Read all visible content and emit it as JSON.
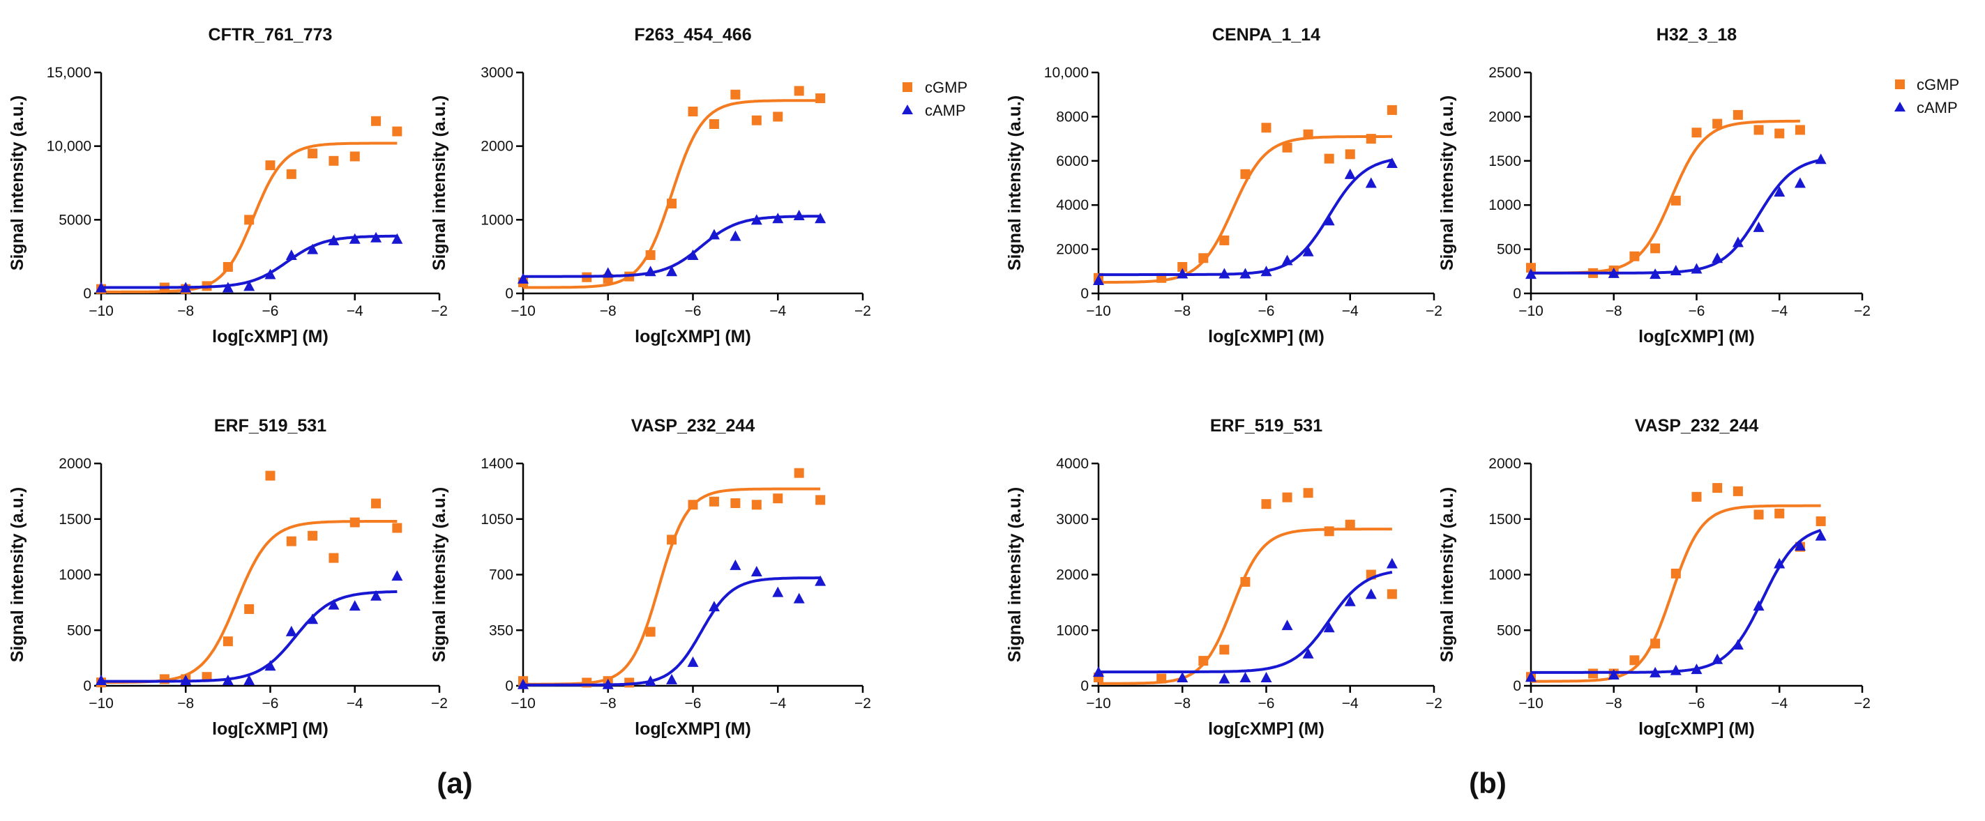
{
  "figure": {
    "panel_labels": [
      "(a)",
      "(b)"
    ],
    "legend": [
      {
        "series": "cGMP",
        "marker": "square",
        "color": "#F47B20"
      },
      {
        "series": "cAMP",
        "marker": "triangle",
        "color": "#1818D2"
      }
    ]
  },
  "chart_data": [
    {
      "type": "scatter",
      "title": "CFTR_761_773",
      "xlabel": "log[cXMP] (M)",
      "ylabel": "Signal intensity (a.u.)",
      "xlim": [
        -10,
        -2
      ],
      "xticks": [
        -10,
        -8,
        -6,
        -4,
        -2
      ],
      "ylim": [
        0,
        15000
      ],
      "yticks": [
        0,
        5000,
        10000,
        15000
      ],
      "ytick_labels": [
        "0",
        "5000",
        "10,000",
        "15,000"
      ],
      "series": [
        {
          "name": "cGMP",
          "x": [
            -10,
            -8.5,
            -8,
            -7.5,
            -7,
            -6.5,
            -6,
            -5.5,
            -5,
            -4.5,
            -4,
            -3.5,
            -3
          ],
          "y": [
            300,
            400,
            300,
            500,
            1800,
            5000,
            8700,
            8100,
            9500,
            9000,
            9300,
            11700,
            11000
          ],
          "fit": {
            "bottom": 100,
            "top": 10200,
            "logec50": -6.4,
            "hill": 1.2
          }
        },
        {
          "name": "cAMP",
          "x": [
            -10,
            -8,
            -7,
            -6.5,
            -6,
            -5.5,
            -5,
            -4.5,
            -4,
            -3.5,
            -3
          ],
          "y": [
            400,
            400,
            400,
            500,
            1300,
            2600,
            3000,
            3600,
            3700,
            3800,
            3700
          ],
          "fit": {
            "bottom": 400,
            "top": 3900,
            "logec50": -5.6,
            "hill": 1.0
          }
        }
      ]
    },
    {
      "type": "scatter",
      "title": "F263_454_466",
      "xlabel": "log[cXMP] (M)",
      "ylabel": "Signal intensity (a.u.)",
      "xlim": [
        -10,
        -2
      ],
      "xticks": [
        -10,
        -8,
        -6,
        -4,
        -2
      ],
      "ylim": [
        0,
        3000
      ],
      "yticks": [
        0,
        1000,
        2000,
        3000
      ],
      "ytick_labels": [
        "0",
        "1000",
        "2000",
        "3000"
      ],
      "series": [
        {
          "name": "cGMP",
          "x": [
            -10,
            -8.5,
            -8,
            -7.5,
            -7,
            -6.5,
            -6,
            -5.5,
            -5,
            -4.5,
            -4,
            -3.5,
            -3
          ],
          "y": [
            150,
            220,
            200,
            230,
            520,
            1220,
            2470,
            2300,
            2700,
            2350,
            2400,
            2750,
            2650
          ],
          "fit": {
            "bottom": 80,
            "top": 2620,
            "logec50": -6.5,
            "hill": 1.2
          }
        },
        {
          "name": "cAMP",
          "x": [
            -10,
            -8,
            -7,
            -6.5,
            -6,
            -5.5,
            -5,
            -4.5,
            -4,
            -3.5,
            -3
          ],
          "y": [
            200,
            280,
            300,
            300,
            520,
            800,
            780,
            1000,
            1020,
            1060,
            1020
          ],
          "fit": {
            "bottom": 230,
            "top": 1050,
            "logec50": -5.8,
            "hill": 1.0
          }
        }
      ]
    },
    {
      "type": "scatter",
      "title": "CENPA_1_14",
      "xlabel": "log[cXMP] (M)",
      "ylabel": "Signal intensity (a.u.)",
      "xlim": [
        -10,
        -2
      ],
      "xticks": [
        -10,
        -8,
        -6,
        -4,
        -2
      ],
      "ylim": [
        0,
        10000
      ],
      "yticks": [
        0,
        2000,
        4000,
        6000,
        8000,
        10000
      ],
      "ytick_labels": [
        "0",
        "2000",
        "4000",
        "6000",
        "8000",
        "10,000"
      ],
      "series": [
        {
          "name": "cGMP",
          "x": [
            -10,
            -8.5,
            -8,
            -7.5,
            -7,
            -6.5,
            -6,
            -5.5,
            -5,
            -4.5,
            -4,
            -3.5,
            -3
          ],
          "y": [
            700,
            700,
            1200,
            1600,
            2400,
            5400,
            7500,
            6600,
            7200,
            6100,
            6300,
            7000,
            8300
          ],
          "fit": {
            "bottom": 500,
            "top": 7100,
            "logec50": -6.8,
            "hill": 1.1
          }
        },
        {
          "name": "cAMP",
          "x": [
            -10,
            -8,
            -7,
            -6.5,
            -6,
            -5.5,
            -5,
            -4.5,
            -4,
            -3.5,
            -3
          ],
          "y": [
            600,
            900,
            900,
            900,
            1000,
            1500,
            1900,
            3300,
            5400,
            5000,
            5900
          ],
          "fit": {
            "bottom": 850,
            "top": 6200,
            "logec50": -4.5,
            "hill": 1.0
          }
        }
      ]
    },
    {
      "type": "scatter",
      "title": "H32_3_18",
      "xlabel": "log[cXMP] (M)",
      "ylabel": "Signal intensity (a.u.)",
      "xlim": [
        -10,
        -2
      ],
      "xticks": [
        -10,
        -8,
        -6,
        -4,
        -2
      ],
      "ylim": [
        0,
        2500
      ],
      "yticks": [
        0,
        500,
        1000,
        1500,
        2000,
        2500
      ],
      "ytick_labels": [
        "0",
        "500",
        "1000",
        "1500",
        "2000",
        "2500"
      ],
      "series": [
        {
          "name": "cGMP",
          "x": [
            -10,
            -8.5,
            -8,
            -7.5,
            -7,
            -6.5,
            -6,
            -5.5,
            -5,
            -4.5,
            -4,
            -3.5
          ],
          "y": [
            290,
            230,
            260,
            420,
            510,
            1050,
            1820,
            1920,
            2020,
            1850,
            1810,
            1850
          ],
          "fit": {
            "bottom": 230,
            "top": 1950,
            "logec50": -6.6,
            "hill": 1.1
          }
        },
        {
          "name": "cAMP",
          "x": [
            -10,
            -8,
            -7,
            -6.5,
            -6,
            -5.5,
            -5,
            -4.5,
            -4,
            -3.5,
            -3
          ],
          "y": [
            220,
            230,
            220,
            260,
            280,
            400,
            580,
            750,
            1150,
            1250,
            1520
          ],
          "fit": {
            "bottom": 230,
            "top": 1550,
            "logec50": -4.5,
            "hill": 1.0
          }
        }
      ]
    },
    {
      "type": "scatter",
      "title": "ERF_519_531",
      "xlabel": "log[cXMP] (M)",
      "ylabel": "Signal intensity (a.u.)",
      "xlim": [
        -10,
        -2
      ],
      "xticks": [
        -10,
        -8,
        -6,
        -4,
        -2
      ],
      "ylim": [
        0,
        2000
      ],
      "yticks": [
        0,
        500,
        1000,
        1500,
        2000
      ],
      "ytick_labels": [
        "0",
        "500",
        "1000",
        "1500",
        "2000"
      ],
      "series": [
        {
          "name": "cGMP",
          "x": [
            -10,
            -8.5,
            -8,
            -7.5,
            -7,
            -6.5,
            -6,
            -5.5,
            -5,
            -4.5,
            -4,
            -3.5,
            -3
          ],
          "y": [
            30,
            60,
            60,
            80,
            400,
            690,
            1890,
            1300,
            1350,
            1150,
            1470,
            1640,
            1420
          ],
          "fit": {
            "bottom": 30,
            "top": 1480,
            "logec50": -6.8,
            "hill": 1.1
          }
        },
        {
          "name": "cAMP",
          "x": [
            -10,
            -8,
            -7,
            -6.5,
            -6,
            -5.5,
            -5,
            -4.5,
            -4,
            -3.5,
            -3
          ],
          "y": [
            50,
            50,
            50,
            50,
            180,
            490,
            600,
            730,
            720,
            810,
            990
          ],
          "fit": {
            "bottom": 40,
            "top": 850,
            "logec50": -5.4,
            "hill": 1.0
          }
        }
      ]
    },
    {
      "type": "scatter",
      "title": "VASP_232_244",
      "xlabel": "log[cXMP] (M)",
      "ylabel": "Signal intensity (a.u.)",
      "xlim": [
        -10,
        -2
      ],
      "xticks": [
        -10,
        -8,
        -6,
        -4,
        -2
      ],
      "ylim": [
        0,
        1400
      ],
      "yticks": [
        0,
        350,
        700,
        1050,
        1400
      ],
      "ytick_labels": [
        "0",
        "350",
        "700",
        "1050",
        "1400"
      ],
      "series": [
        {
          "name": "cGMP",
          "x": [
            -10,
            -8.5,
            -8,
            -7.5,
            -7,
            -6.5,
            -6,
            -5.5,
            -5,
            -4.5,
            -4,
            -3.5,
            -3
          ],
          "y": [
            30,
            20,
            30,
            20,
            340,
            920,
            1140,
            1160,
            1150,
            1140,
            1180,
            1340,
            1170
          ],
          "fit": {
            "bottom": 10,
            "top": 1240,
            "logec50": -6.8,
            "hill": 1.3
          }
        },
        {
          "name": "cAMP",
          "x": [
            -10,
            -8,
            -7,
            -6.5,
            -6,
            -5.5,
            -5,
            -4.5,
            -4,
            -3.5,
            -3
          ],
          "y": [
            10,
            10,
            30,
            40,
            150,
            500,
            760,
            720,
            590,
            550,
            660
          ],
          "fit": {
            "bottom": 5,
            "top": 680,
            "logec50": -5.8,
            "hill": 1.2
          }
        }
      ]
    },
    {
      "type": "scatter",
      "title": "ERF_519_531",
      "xlabel": "log[cXMP] (M)",
      "ylabel": "Signal intensity (a.u.)",
      "xlim": [
        -10,
        -2
      ],
      "xticks": [
        -10,
        -8,
        -6,
        -4,
        -2
      ],
      "ylim": [
        0,
        4000
      ],
      "yticks": [
        0,
        1000,
        2000,
        3000,
        4000
      ],
      "ytick_labels": [
        "0",
        "1000",
        "2000",
        "3000",
        "4000"
      ],
      "series": [
        {
          "name": "cGMP",
          "x": [
            -10,
            -8.5,
            -7.5,
            -7,
            -6.5,
            -6,
            -5.5,
            -5,
            -4.5,
            -4,
            -3.5,
            -3
          ],
          "y": [
            150,
            130,
            450,
            650,
            1870,
            3270,
            3390,
            3470,
            2780,
            2900,
            2000,
            1650
          ],
          "fit": {
            "bottom": 40,
            "top": 2820,
            "logec50": -6.8,
            "hill": 1.2
          }
        },
        {
          "name": "cAMP",
          "x": [
            -10,
            -8,
            -7,
            -6.5,
            -6,
            -5.5,
            -5,
            -4.5,
            -4,
            -3.5,
            -3
          ],
          "y": [
            250,
            150,
            130,
            150,
            150,
            1090,
            580,
            1050,
            1520,
            1650,
            2200
          ],
          "fit": {
            "bottom": 250,
            "top": 2100,
            "logec50": -4.5,
            "hill": 1.0
          }
        }
      ]
    },
    {
      "type": "scatter",
      "title": "VASP_232_244",
      "xlabel": "log[cXMP] (M)",
      "ylabel": "Signal intensity (a.u.)",
      "xlim": [
        -10,
        -2
      ],
      "xticks": [
        -10,
        -8,
        -6,
        -4,
        -2
      ],
      "ylim": [
        0,
        2000
      ],
      "yticks": [
        0,
        500,
        1000,
        1500,
        2000
      ],
      "ytick_labels": [
        "0",
        "500",
        "1000",
        "1500",
        "2000"
      ],
      "series": [
        {
          "name": "cGMP",
          "x": [
            -10,
            -8.5,
            -8,
            -7.5,
            -7,
            -6.5,
            -6,
            -5.5,
            -5,
            -4.5,
            -4,
            -3.5,
            -3
          ],
          "y": [
            80,
            110,
            110,
            230,
            380,
            1010,
            1700,
            1780,
            1750,
            1540,
            1550,
            1250,
            1480
          ],
          "fit": {
            "bottom": 40,
            "top": 1620,
            "logec50": -6.6,
            "hill": 1.2
          }
        },
        {
          "name": "cAMP",
          "x": [
            -10,
            -8,
            -7,
            -6.5,
            -6,
            -5.5,
            -5,
            -4.5,
            -4,
            -3.5,
            -3
          ],
          "y": [
            80,
            100,
            120,
            140,
            150,
            240,
            370,
            720,
            1100,
            1260,
            1350
          ],
          "fit": {
            "bottom": 120,
            "top": 1450,
            "logec50": -4.4,
            "hill": 1.0
          }
        }
      ]
    }
  ]
}
